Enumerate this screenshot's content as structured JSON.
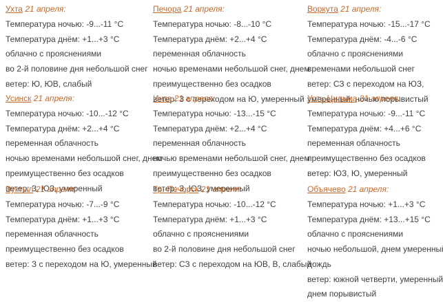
{
  "page": {
    "accent_color": "#c4692c",
    "text_color": "#3f3f3f",
    "background_color": "#ffffff"
  },
  "cities": [
    {
      "name": "Ухта",
      "date": "21 апреля:",
      "lines": [
        "Температура ночью: -9...-11 °С",
        "Температура днём: +1...+3 °С",
        "облачно с прояснениями",
        "во 2-й половине дня небольшой снег",
        "ветер: Ю, ЮВ, слабый"
      ]
    },
    {
      "name": "Печора",
      "date": "21 апреля:",
      "lines": [
        "Температура ночью: -8...-10 °С",
        "Температура днём: +2...+4 °С",
        "переменная облачность",
        "ночью временами небольшой снег, днем",
        "преимущественно без осадков",
        "ветер: З с переходом на Ю, умеренный"
      ]
    },
    {
      "name": "Воркута",
      "date": "21 апреля:",
      "lines": [
        "Температура ночью: -15...-17 °С",
        "Температура днём: -4...-6 °С",
        "облачно с прояснениями",
        "временами небольшой снег",
        "ветер: СЗ с переходом на ЮЗ,",
        "умеренный, ночью порывистый"
      ]
    },
    {
      "name": "Усинск",
      "date": "21 апреля:",
      "lines": [
        "Температура ночью: -10...-12 °С",
        "Температура днём: +2...+4 °С",
        "переменная облачность",
        "ночью временами небольшой снег, днем",
        "преимущественно без осадков",
        "ветер: З, ЮЗ, умеренный"
      ]
    },
    {
      "name": "Инта",
      "date": "21 апреля:",
      "lines": [
        "Температура ночью: -13...-15 °С",
        "Температура днём: +2...+4 °С",
        "переменная облачность",
        "ночью временами небольшой снег, днем",
        "преимущественно без осадков",
        "ветер: З, ЮЗ, умеренный"
      ]
    },
    {
      "name": "Усть-Цильма",
      "date": "21 апреля:",
      "lines": [
        "Температура ночью: -9...-11 °С",
        "Температура днём: +4...+6 °С",
        "переменная облачность",
        "преимущественно без осадков",
        "ветер: ЮЗ, Ю, умеренный"
      ]
    },
    {
      "name": "Вуктыл",
      "date": "21 апреля:",
      "lines": [
        "Температура ночью: -7...-9 °С",
        "Температура днём: +1...+3 °С",
        "переменная облачность",
        "преимущественно без осадков",
        "ветер: З с переходом на Ю, умеренный"
      ]
    },
    {
      "name": "Тр.-Печорск",
      "date": "21 апреля:",
      "lines": [
        "Температура ночью: -10...-12 °С",
        "Температура днём: +1...+3 °С",
        "облачно с прояснениями",
        "во 2-й половине дня небольшой снег",
        "ветер: СЗ с переходом на ЮВ, В, слабый"
      ]
    },
    {
      "name": "Объячево",
      "date": "21 апреля:",
      "lines": [
        "Температура ночью: +1...+3 °С",
        "Температура днём: +13...+15 °С",
        "облачно с прояснениями",
        "ночью небольшой, днем умеренный",
        "дождь",
        "ветер: южной четверти, умеренный,",
        "днем порывистый"
      ]
    }
  ]
}
